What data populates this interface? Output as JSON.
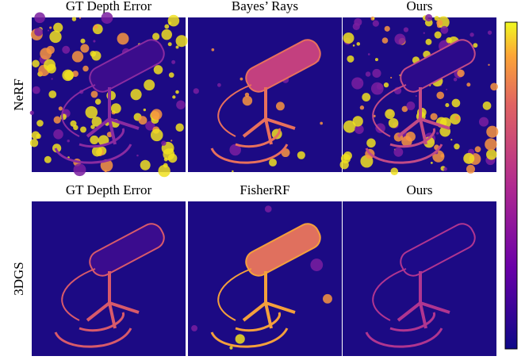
{
  "figure": {
    "rows": [
      {
        "label": "NeRF",
        "columns": [
          "GT Depth Error",
          "Bayes’ Rays",
          "Ours"
        ]
      },
      {
        "label": "3DGS",
        "columns": [
          "GT Depth Error",
          "FisherRF",
          "Ours"
        ]
      }
    ]
  }
}
